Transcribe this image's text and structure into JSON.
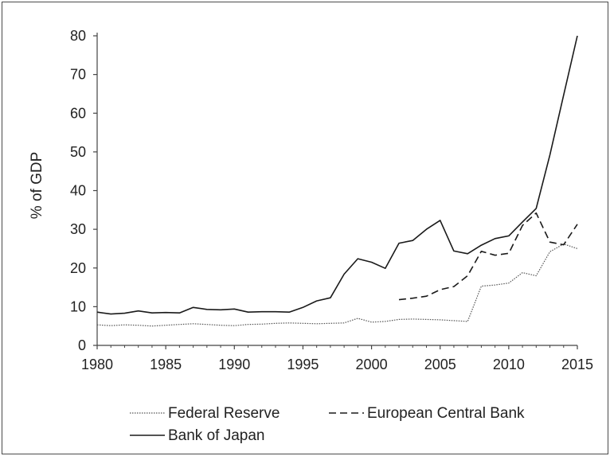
{
  "chart_data": {
    "type": "line",
    "title": "",
    "xlabel": "",
    "ylabel": "% of GDP",
    "xlim": [
      1980,
      2015
    ],
    "ylim": [
      0,
      80
    ],
    "xticks": [
      "1980",
      "1985",
      "1990",
      "1995",
      "2000",
      "2005",
      "2010",
      "2015"
    ],
    "yticks": [
      "0",
      "10",
      "20",
      "30",
      "40",
      "50",
      "60",
      "70",
      "80"
    ],
    "grid": false,
    "legend_position": "bottom",
    "series": [
      {
        "name": "Federal Reserve",
        "style": "dotted",
        "x": [
          1980,
          1981,
          1982,
          1983,
          1984,
          1985,
          1986,
          1987,
          1988,
          1989,
          1990,
          1991,
          1992,
          1993,
          1994,
          1995,
          1996,
          1997,
          1998,
          1999,
          2000,
          2001,
          2002,
          2003,
          2004,
          2005,
          2006,
          2007,
          2008,
          2009,
          2010,
          2011,
          2012,
          2013,
          2014,
          2015
        ],
        "values": [
          5.3,
          5.1,
          5.3,
          5.2,
          5.0,
          5.2,
          5.4,
          5.6,
          5.4,
          5.2,
          5.1,
          5.4,
          5.5,
          5.7,
          5.8,
          5.7,
          5.6,
          5.7,
          5.8,
          7.0,
          6.0,
          6.2,
          6.7,
          6.8,
          6.7,
          6.6,
          6.4,
          6.2,
          15.3,
          15.6,
          16.1,
          18.8,
          18.0,
          24.2,
          26.2,
          25.0
        ]
      },
      {
        "name": "European Central Bank",
        "style": "dashed",
        "x": [
          2002,
          2003,
          2004,
          2005,
          2006,
          2007,
          2008,
          2009,
          2010,
          2011,
          2012,
          2013,
          2014,
          2015
        ],
        "values": [
          11.8,
          12.2,
          12.7,
          14.4,
          15.2,
          18.0,
          24.3,
          23.3,
          23.8,
          31.0,
          34.2,
          26.7,
          26.0,
          31.3
        ]
      },
      {
        "name": "Bank of Japan",
        "style": "solid",
        "x": [
          1980,
          1981,
          1982,
          1983,
          1984,
          1985,
          1986,
          1987,
          1988,
          1989,
          1990,
          1991,
          1992,
          1993,
          1994,
          1995,
          1996,
          1997,
          1998,
          1999,
          2000,
          2001,
          2002,
          2003,
          2004,
          2005,
          2006,
          2007,
          2008,
          2009,
          2010,
          2011,
          2012,
          2013,
          2014,
          2015
        ],
        "values": [
          8.6,
          8.1,
          8.3,
          8.9,
          8.4,
          8.5,
          8.4,
          9.8,
          9.3,
          9.2,
          9.4,
          8.6,
          8.7,
          8.7,
          8.6,
          9.8,
          11.5,
          12.3,
          18.4,
          22.4,
          21.5,
          19.9,
          26.4,
          27.1,
          30.0,
          32.3,
          24.4,
          23.7,
          25.9,
          27.6,
          28.3,
          31.9,
          35.4,
          49.2,
          64.7,
          80.0
        ]
      }
    ]
  }
}
